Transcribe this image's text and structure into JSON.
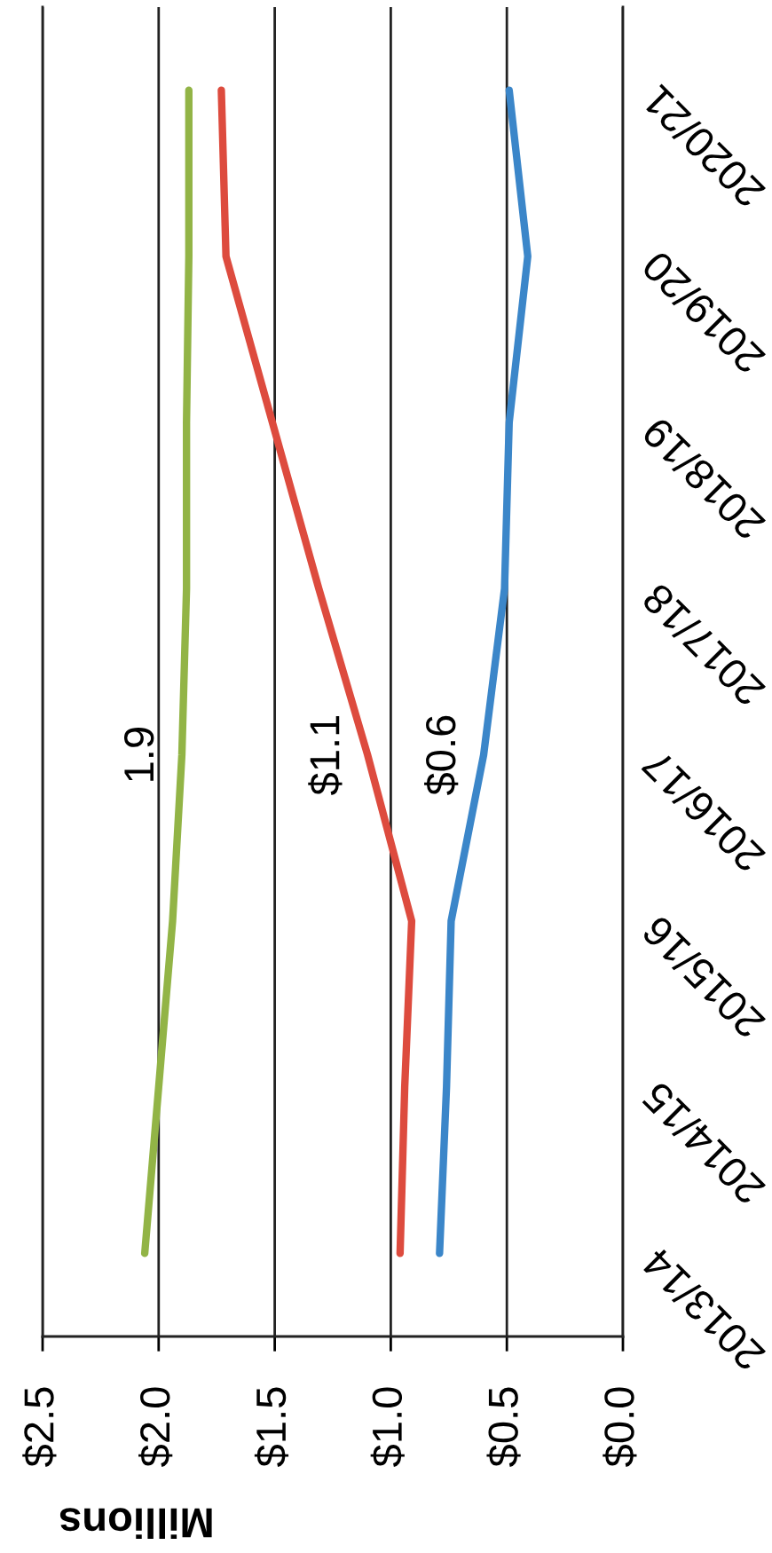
{
  "chart_data": {
    "type": "line",
    "orientation": "horizontal",
    "xlabel": "Millions",
    "categories": [
      "2020/21",
      "2019/20",
      "2018/19",
      "2017/18",
      "2016/17",
      "2015/16",
      "2014/15",
      "2013/14"
    ],
    "series": [
      {
        "color": "#92b446",
        "values": [
          1.87,
          1.87,
          1.88,
          1.88,
          1.9,
          1.94,
          2.0,
          2.06
        ],
        "value_labels": [
          null,
          null,
          null,
          null,
          "1.9",
          null,
          null,
          null
        ]
      },
      {
        "color": "#dd4b3e",
        "values": [
          1.73,
          1.71,
          1.51,
          1.31,
          1.1,
          0.91,
          0.94,
          0.96
        ],
        "value_labels": [
          null,
          null,
          null,
          null,
          "$1.1",
          null,
          null,
          null
        ]
      },
      {
        "color": "#3b86c9",
        "values": [
          0.49,
          0.41,
          0.49,
          0.51,
          0.6,
          0.74,
          0.76,
          0.79
        ],
        "value_labels": [
          null,
          null,
          null,
          null,
          "$0.6",
          null,
          null,
          null
        ]
      }
    ],
    "xlim": [
      2.5,
      0
    ],
    "xticks": [
      {
        "value": 2.5,
        "label": "$2.5"
      },
      {
        "value": 2.0,
        "label": "$2.0"
      },
      {
        "value": 1.5,
        "label": "$1.5"
      },
      {
        "value": 1.0,
        "label": "$1.0"
      },
      {
        "value": 0.5,
        "label": "$0.5"
      },
      {
        "value": 0.0,
        "label": "$0.0"
      }
    ],
    "grid": "x",
    "marker": "none",
    "line_style": "solid"
  }
}
